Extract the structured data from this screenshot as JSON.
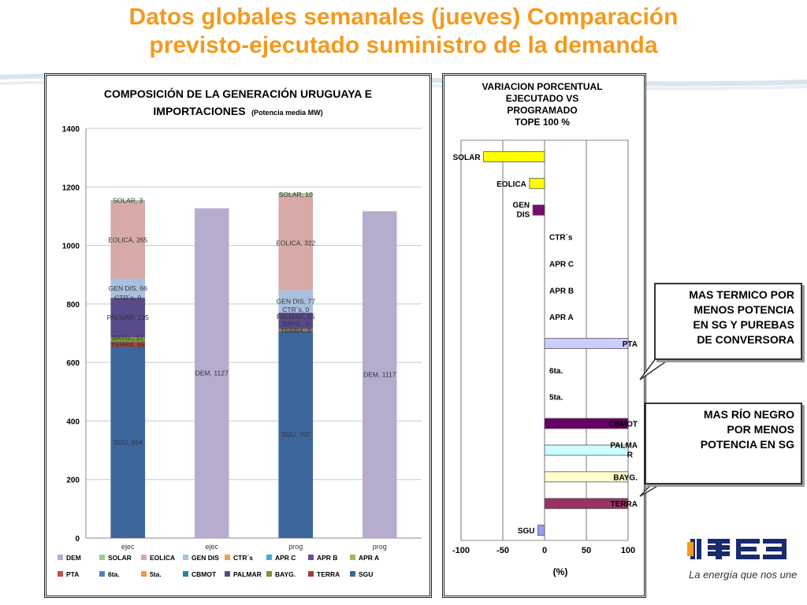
{
  "page": {
    "title_line1": "Datos globales semanales  (jueves) Comparación",
    "title_line2": "previsto-ejecutado suministro de la demanda",
    "colors": {
      "title": "#f39a1e"
    }
  },
  "callouts": [
    {
      "line1": "MAS TERMICO POR",
      "line2": "MENOS POTENCIA",
      "line3": "EN SG Y PUREBAS",
      "line4": "DE CONVERSORA"
    },
    {
      "line1": "MAS RÍO NEGRO",
      "line2": "POR MENOS",
      "line3": "POTENCIA EN SG"
    }
  ],
  "logo": {
    "brand": "UTE",
    "tagline": "La energía que nos une"
  },
  "chart_data": [
    {
      "type": "bar",
      "stacked": true,
      "title_line1": "COMPOSICIÓN DE LA GENERACIÓN URUGUAYA E",
      "title_line2_main": "IMPORTACIONES",
      "title_line2_sub": "(Potencia media MW)",
      "categories": [
        "ejec",
        "ejec",
        "prog",
        "prog"
      ],
      "ylim": [
        0,
        1400
      ],
      "yticks": [
        0,
        200,
        400,
        600,
        800,
        1000,
        1200,
        1400
      ],
      "grid": true,
      "legend_position": "bottom",
      "legend": [
        "DEM",
        "SOLAR",
        "EOLICA",
        "GEN DIS",
        "CTR´s",
        "APR C",
        "APR B",
        "APR A",
        "PTA",
        "6ta.",
        "5ta.",
        "CBMOT",
        "PALMAR",
        "BAYG.",
        "TERRA",
        "SGU"
      ],
      "series_colors": {
        "DEM": "#b8acce",
        "SOLAR": "#a3c88f",
        "EOLICA": "#d7a9a7",
        "GEN DIS": "#a8c0dd",
        "CTR´s": "#f0a04a",
        "APR C": "#4aacc6",
        "APR B": "#6b4aa0",
        "APR A": "#9bbb59",
        "PTA": "#c0504d",
        "6ta.": "#4f81bd",
        "5ta.": "#f79646",
        "CBMOT": "#2c7fa0",
        "PALMAR": "#5a4a8a",
        "BAYG.": "#77933c",
        "TERRA": "#a53e3b",
        "SGU": "#3c669c"
      },
      "bars": [
        {
          "category": "ejec",
          "segments": [
            {
              "series": "SGU",
              "value": 654,
              "label": "SGU, 654"
            },
            {
              "series": "TERRA",
              "value": 15,
              "label": "TERRA, 15"
            },
            {
              "series": "BAYG.",
              "value": 17,
              "label": "BAYG., 17"
            },
            {
              "series": "PALMAR",
              "value": 135,
              "label": "PALMAR, 135"
            },
            {
              "series": "CTR´s",
              "value": 0,
              "label": "CTR´s, 0"
            },
            {
              "series": "GEN DIS",
              "value": 66,
              "label": "GEN DIS, 66"
            },
            {
              "series": "EOLICA",
              "value": 265,
              "label": "EOLICA, 265"
            },
            {
              "series": "SOLAR",
              "value": 3,
              "label": "SOLAR, 3"
            }
          ]
        },
        {
          "category": "ejec",
          "segments": [
            {
              "series": "DEM",
              "value": 1127,
              "label": "DEM, 1127"
            }
          ]
        },
        {
          "category": "prog",
          "segments": [
            {
              "series": "SGU",
              "value": 707,
              "label": "SGU, 707"
            },
            {
              "series": "TERRA",
              "value": 3,
              "label": "TERRA, 3"
            },
            {
              "series": "BAYG.",
              "value": 5,
              "label": "BAYG., 5"
            },
            {
              "series": "PALMAR",
              "value": 55,
              "label": "PALMAR, 55"
            },
            {
              "series": "CTR´s",
              "value": 0,
              "label": "CTR´s, 0"
            },
            {
              "series": "GEN DIS",
              "value": 77,
              "label": "GEN DIS, 77"
            },
            {
              "series": "EOLICA",
              "value": 322,
              "label": "EOLICA, 322"
            },
            {
              "series": "SOLAR",
              "value": 10,
              "label": "SOLAR, 10"
            }
          ]
        },
        {
          "category": "prog",
          "segments": [
            {
              "series": "DEM",
              "value": 1117,
              "label": "DEM, 1117"
            }
          ]
        }
      ]
    },
    {
      "type": "bar",
      "orientation": "horizontal",
      "title_line1": "VARIACION  PORCENTUAL",
      "title_line2": "EJECUTADO VS",
      "title_line3": "PROGRAMADO",
      "title_line4": "TOPE 100 %",
      "xlabel": "(%)",
      "xlim": [
        -100,
        100
      ],
      "xticks": [
        -100,
        -50,
        0,
        50,
        100
      ],
      "grid": true,
      "categories": [
        {
          "label": "SOLAR",
          "value": -73,
          "color": "#ffff00"
        },
        {
          "label": "EOLICA",
          "value": -18,
          "color": "#ffff00"
        },
        {
          "label_line1": "GEN",
          "label_line2": "DIS",
          "value": -14,
          "color": "#7a0b6e"
        },
        {
          "label": "CTR´s",
          "value": 0,
          "color": "#ffffff"
        },
        {
          "label": "APR C",
          "value": 0,
          "color": "#ffffff"
        },
        {
          "label": "APR B",
          "value": 0,
          "color": "#ffffff"
        },
        {
          "label": "APR A",
          "value": 0,
          "color": "#ffffff"
        },
        {
          "label": "PTA",
          "value": 100,
          "color": "#ccccff"
        },
        {
          "label": "6ta.",
          "value": 0,
          "color": "#ffffff"
        },
        {
          "label": "5ta.",
          "value": 0,
          "color": "#ffffff"
        },
        {
          "label": "CBMOT",
          "value": 100,
          "color": "#660066"
        },
        {
          "label_line1": "PALMA",
          "label_line2": "R",
          "value": 100,
          "color": "#ccffff"
        },
        {
          "label": "BAYG.",
          "value": 100,
          "color": "#ffffcc"
        },
        {
          "label": "TERRA",
          "value": 100,
          "color": "#993366"
        },
        {
          "label": "SGU",
          "value": -8,
          "color": "#9999ff"
        }
      ]
    }
  ]
}
